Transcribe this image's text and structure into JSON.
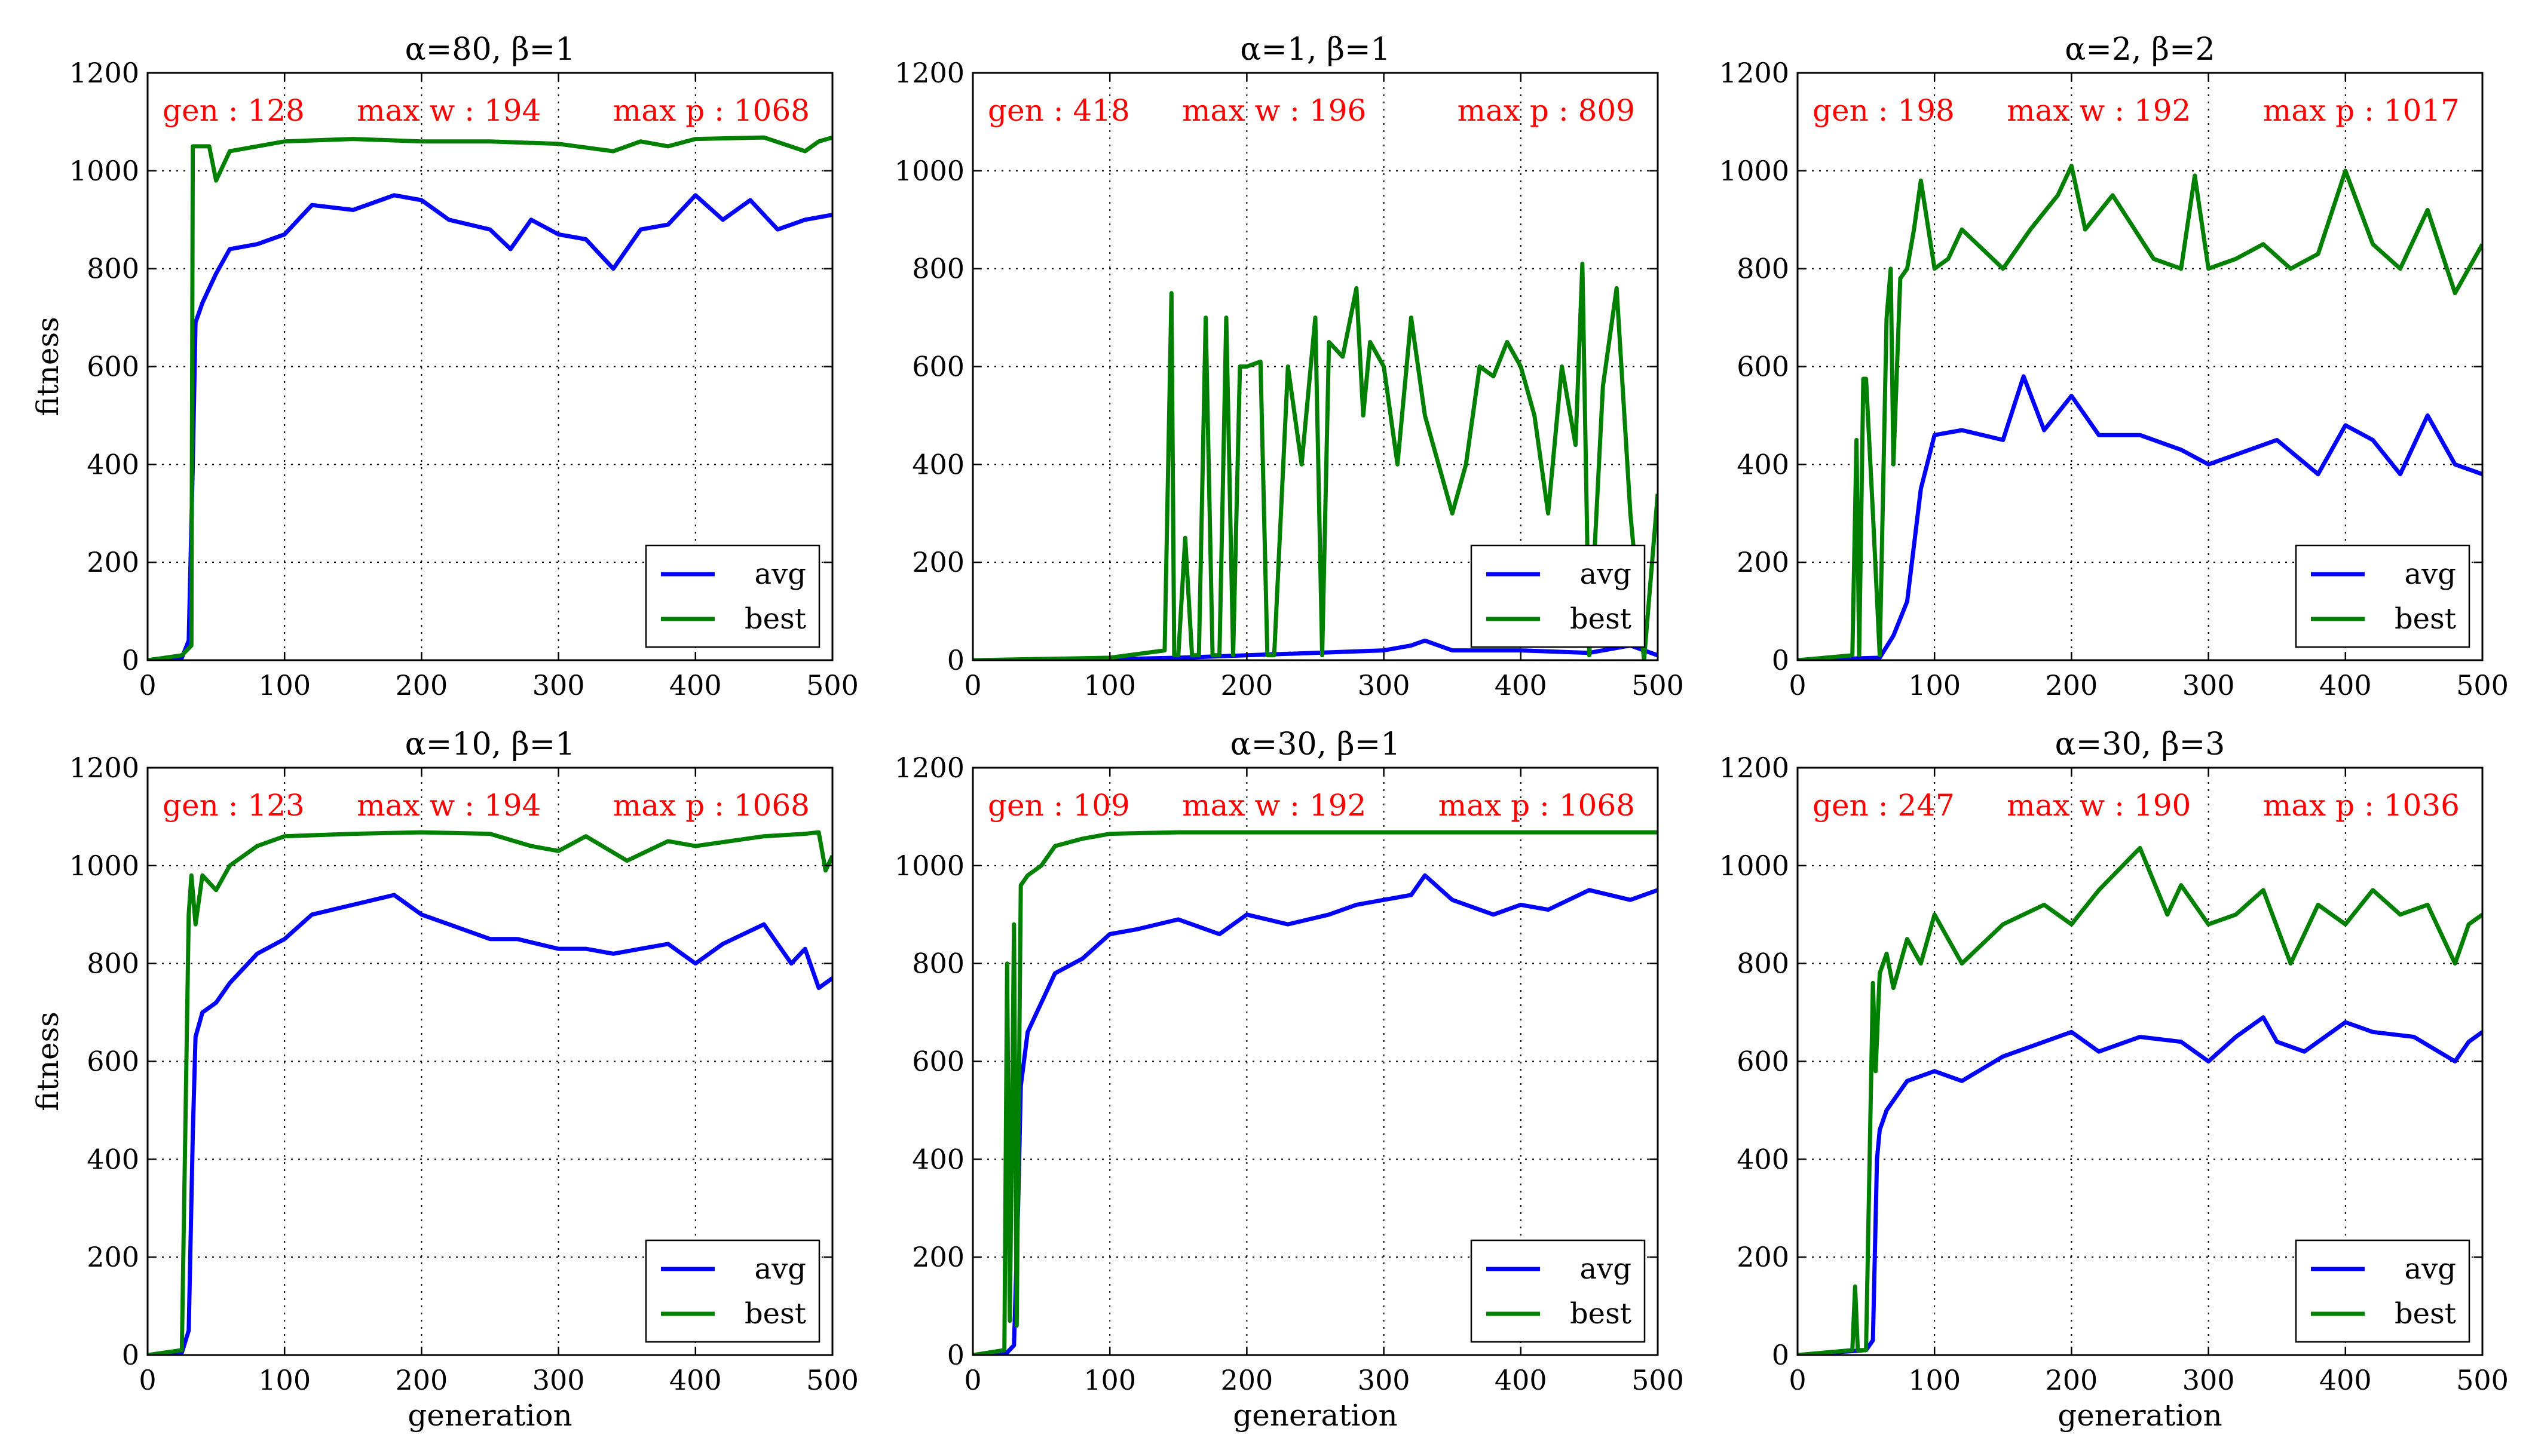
{
  "figure": {
    "colors": {
      "avg": "#0000ff",
      "best": "#008000",
      "annotation": "#ff0000",
      "grid": "#888888"
    }
  },
  "chart_data": [
    {
      "type": "line",
      "title": "α=80, β=1",
      "xlabel": "",
      "ylabel": "fitness",
      "xlim": [
        0,
        500
      ],
      "ylim": [
        0,
        1200
      ],
      "xticks": [
        0,
        100,
        200,
        300,
        400,
        500
      ],
      "yticks": [
        0,
        200,
        400,
        600,
        800,
        1000,
        1200
      ],
      "grid": true,
      "legend": "lower-right",
      "annotations": {
        "gen": "gen : 128",
        "maxw": "max w : 194",
        "maxp": "max p : 1068"
      },
      "series": [
        {
          "name": "avg",
          "x": [
            0,
            25,
            30,
            33,
            35,
            40,
            50,
            60,
            80,
            100,
            120,
            150,
            180,
            200,
            220,
            250,
            265,
            280,
            300,
            320,
            340,
            360,
            380,
            400,
            420,
            440,
            460,
            480,
            500
          ],
          "values": [
            0,
            5,
            40,
            400,
            690,
            730,
            790,
            840,
            850,
            870,
            930,
            920,
            950,
            940,
            900,
            880,
            840,
            900,
            870,
            860,
            800,
            880,
            890,
            950,
            900,
            940,
            880,
            900,
            910
          ]
        },
        {
          "name": "best",
          "x": [
            0,
            25,
            32,
            33,
            45,
            50,
            60,
            80,
            100,
            150,
            200,
            250,
            300,
            340,
            360,
            380,
            400,
            450,
            480,
            490,
            500
          ],
          "values": [
            0,
            10,
            30,
            1050,
            1050,
            980,
            1040,
            1050,
            1060,
            1065,
            1060,
            1060,
            1055,
            1040,
            1060,
            1050,
            1065,
            1068,
            1040,
            1060,
            1068
          ]
        }
      ]
    },
    {
      "type": "line",
      "title": "α=1, β=1",
      "xlabel": "",
      "ylabel": "",
      "xlim": [
        0,
        500
      ],
      "ylim": [
        0,
        1200
      ],
      "xticks": [
        0,
        100,
        200,
        300,
        400,
        500
      ],
      "yticks": [
        0,
        200,
        400,
        600,
        800,
        1000,
        1200
      ],
      "grid": true,
      "legend": "lower-right",
      "annotations": {
        "gen": "gen : 418",
        "maxw": "max w : 196",
        "maxp": "max p : 809"
      },
      "series": [
        {
          "name": "avg",
          "x": [
            0,
            100,
            150,
            200,
            250,
            300,
            320,
            330,
            350,
            400,
            450,
            480,
            500
          ],
          "values": [
            0,
            2,
            5,
            10,
            15,
            20,
            30,
            40,
            20,
            20,
            15,
            30,
            10
          ]
        },
        {
          "name": "best",
          "x": [
            0,
            100,
            140,
            145,
            147,
            150,
            155,
            160,
            165,
            170,
            175,
            178,
            180,
            185,
            190,
            195,
            200,
            210,
            215,
            220,
            230,
            240,
            250,
            255,
            260,
            270,
            280,
            285,
            290,
            300,
            310,
            320,
            330,
            340,
            350,
            360,
            370,
            380,
            390,
            400,
            410,
            420,
            430,
            440,
            445,
            450,
            460,
            470,
            480,
            490,
            500
          ],
          "values": [
            0,
            5,
            20,
            750,
            10,
            10,
            250,
            10,
            10,
            700,
            10,
            10,
            10,
            700,
            10,
            600,
            600,
            610,
            10,
            10,
            600,
            400,
            700,
            10,
            650,
            620,
            760,
            500,
            650,
            600,
            400,
            700,
            500,
            400,
            300,
            400,
            600,
            580,
            650,
            600,
            500,
            300,
            600,
            440,
            810,
            10,
            560,
            760,
            300,
            0,
            340
          ]
        }
      ]
    },
    {
      "type": "line",
      "title": "α=2, β=2",
      "xlabel": "",
      "ylabel": "",
      "xlim": [
        0,
        500
      ],
      "ylim": [
        0,
        1200
      ],
      "xticks": [
        0,
        100,
        200,
        300,
        400,
        500
      ],
      "yticks": [
        0,
        200,
        400,
        600,
        800,
        1000,
        1200
      ],
      "grid": true,
      "legend": "lower-right",
      "annotations": {
        "gen": "gen : 198",
        "maxw": "max w : 192",
        "maxp": "max p : 1017"
      },
      "series": [
        {
          "name": "avg",
          "x": [
            0,
            60,
            70,
            80,
            90,
            100,
            120,
            150,
            165,
            180,
            200,
            220,
            250,
            280,
            300,
            320,
            350,
            380,
            400,
            420,
            440,
            460,
            480,
            500
          ],
          "values": [
            0,
            5,
            50,
            120,
            350,
            460,
            470,
            450,
            580,
            470,
            540,
            460,
            460,
            430,
            400,
            420,
            450,
            380,
            480,
            450,
            380,
            500,
            400,
            380
          ]
        },
        {
          "name": "best",
          "x": [
            0,
            40,
            43,
            45,
            48,
            50,
            55,
            60,
            65,
            68,
            70,
            75,
            80,
            85,
            90,
            100,
            110,
            120,
            150,
            170,
            190,
            200,
            210,
            230,
            260,
            280,
            290,
            300,
            320,
            340,
            360,
            380,
            400,
            420,
            440,
            460,
            480,
            500
          ],
          "values": [
            0,
            10,
            450,
            10,
            575,
            575,
            300,
            10,
            700,
            800,
            400,
            780,
            800,
            880,
            980,
            800,
            820,
            880,
            800,
            880,
            950,
            1010,
            880,
            950,
            820,
            800,
            990,
            800,
            820,
            850,
            800,
            830,
            1000,
            850,
            800,
            920,
            750,
            850
          ]
        }
      ]
    },
    {
      "type": "line",
      "title": "α=10, β=1",
      "xlabel": "",
      "ylabel": "fitness",
      "xlim": [
        0,
        500
      ],
      "ylim": [
        0,
        1200
      ],
      "xticks": [
        0,
        100,
        200,
        300,
        400,
        500
      ],
      "yticks": [
        0,
        200,
        400,
        600,
        800,
        1000,
        1200
      ],
      "grid": true,
      "legend": "lower-right",
      "annotations": {
        "gen": "gen : 123",
        "maxw": "max w : 194",
        "maxp": "max p : 1068"
      },
      "series": [
        {
          "name": "avg",
          "x": [
            0,
            25,
            30,
            33,
            35,
            40,
            50,
            60,
            80,
            100,
            120,
            150,
            180,
            200,
            220,
            250,
            270,
            300,
            320,
            340,
            360,
            380,
            400,
            420,
            450,
            470,
            480,
            490,
            500
          ],
          "values": [
            0,
            5,
            50,
            450,
            650,
            700,
            720,
            760,
            820,
            850,
            900,
            920,
            940,
            900,
            880,
            850,
            850,
            830,
            830,
            820,
            830,
            840,
            800,
            840,
            880,
            800,
            830,
            750,
            770
          ]
        },
        {
          "name": "best",
          "x": [
            0,
            25,
            30,
            32,
            35,
            40,
            50,
            60,
            80,
            100,
            150,
            200,
            250,
            280,
            300,
            320,
            350,
            380,
            400,
            450,
            480,
            490,
            495,
            500
          ],
          "values": [
            0,
            10,
            900,
            980,
            880,
            980,
            950,
            1000,
            1040,
            1060,
            1065,
            1068,
            1065,
            1040,
            1030,
            1060,
            1010,
            1050,
            1040,
            1060,
            1065,
            1068,
            990,
            1020
          ]
        }
      ]
    },
    {
      "type": "line",
      "title": "α=30, β=1",
      "xlabel": "",
      "ylabel": "",
      "xlim": [
        0,
        500
      ],
      "ylim": [
        0,
        1200
      ],
      "xticks": [
        0,
        100,
        200,
        300,
        400,
        500
      ],
      "yticks": [
        0,
        200,
        400,
        600,
        800,
        1000,
        1200
      ],
      "grid": true,
      "legend": "lower-right",
      "annotations": {
        "gen": "gen : 109",
        "maxw": "max w : 192",
        "maxp": "max p : 1068"
      },
      "series": [
        {
          "name": "avg",
          "x": [
            0,
            25,
            30,
            33,
            35,
            40,
            50,
            60,
            80,
            100,
            120,
            150,
            180,
            200,
            230,
            260,
            280,
            300,
            320,
            330,
            350,
            380,
            400,
            420,
            450,
            480,
            500
          ],
          "values": [
            0,
            5,
            20,
            300,
            550,
            660,
            720,
            780,
            810,
            860,
            870,
            890,
            860,
            900,
            880,
            900,
            920,
            930,
            940,
            980,
            930,
            900,
            920,
            910,
            950,
            930,
            950
          ]
        },
        {
          "name": "best",
          "x": [
            0,
            23,
            25,
            27,
            30,
            32,
            35,
            40,
            50,
            60,
            80,
            100,
            150,
            200,
            250,
            300,
            350,
            400,
            450,
            500
          ],
          "values": [
            0,
            10,
            800,
            70,
            880,
            60,
            960,
            980,
            1000,
            1040,
            1055,
            1065,
            1068,
            1068,
            1068,
            1068,
            1068,
            1068,
            1068,
            1068
          ]
        }
      ]
    },
    {
      "type": "line",
      "title": "α=30, β=3",
      "xlabel": "",
      "ylabel": "",
      "xlim": [
        0,
        500
      ],
      "ylim": [
        0,
        1200
      ],
      "xticks": [
        0,
        100,
        200,
        300,
        400,
        500
      ],
      "yticks": [
        0,
        200,
        400,
        600,
        800,
        1000,
        1200
      ],
      "grid": true,
      "legend": "lower-right",
      "annotations": {
        "gen": "gen : 247",
        "maxw": "max w : 190",
        "maxp": "max p : 1036"
      },
      "series": [
        {
          "name": "avg",
          "x": [
            0,
            50,
            55,
            58,
            60,
            65,
            70,
            80,
            100,
            120,
            150,
            180,
            200,
            220,
            250,
            280,
            300,
            320,
            340,
            350,
            370,
            400,
            420,
            450,
            480,
            490,
            500
          ],
          "values": [
            0,
            10,
            30,
            400,
            460,
            500,
            520,
            560,
            580,
            560,
            610,
            640,
            660,
            620,
            650,
            640,
            600,
            650,
            690,
            640,
            620,
            680,
            660,
            650,
            600,
            640,
            660
          ]
        },
        {
          "name": "best",
          "x": [
            0,
            40,
            42,
            44,
            50,
            55,
            57,
            60,
            65,
            70,
            80,
            90,
            100,
            120,
            150,
            180,
            200,
            220,
            250,
            270,
            280,
            300,
            320,
            340,
            360,
            380,
            400,
            420,
            440,
            460,
            480,
            490,
            500
          ],
          "values": [
            0,
            10,
            140,
            10,
            10,
            760,
            580,
            780,
            820,
            750,
            850,
            800,
            900,
            800,
            880,
            920,
            880,
            950,
            1036,
            900,
            960,
            880,
            900,
            950,
            800,
            920,
            880,
            950,
            900,
            920,
            800,
            880,
            900
          ]
        }
      ]
    }
  ],
  "xlabel_bottom": "generation"
}
